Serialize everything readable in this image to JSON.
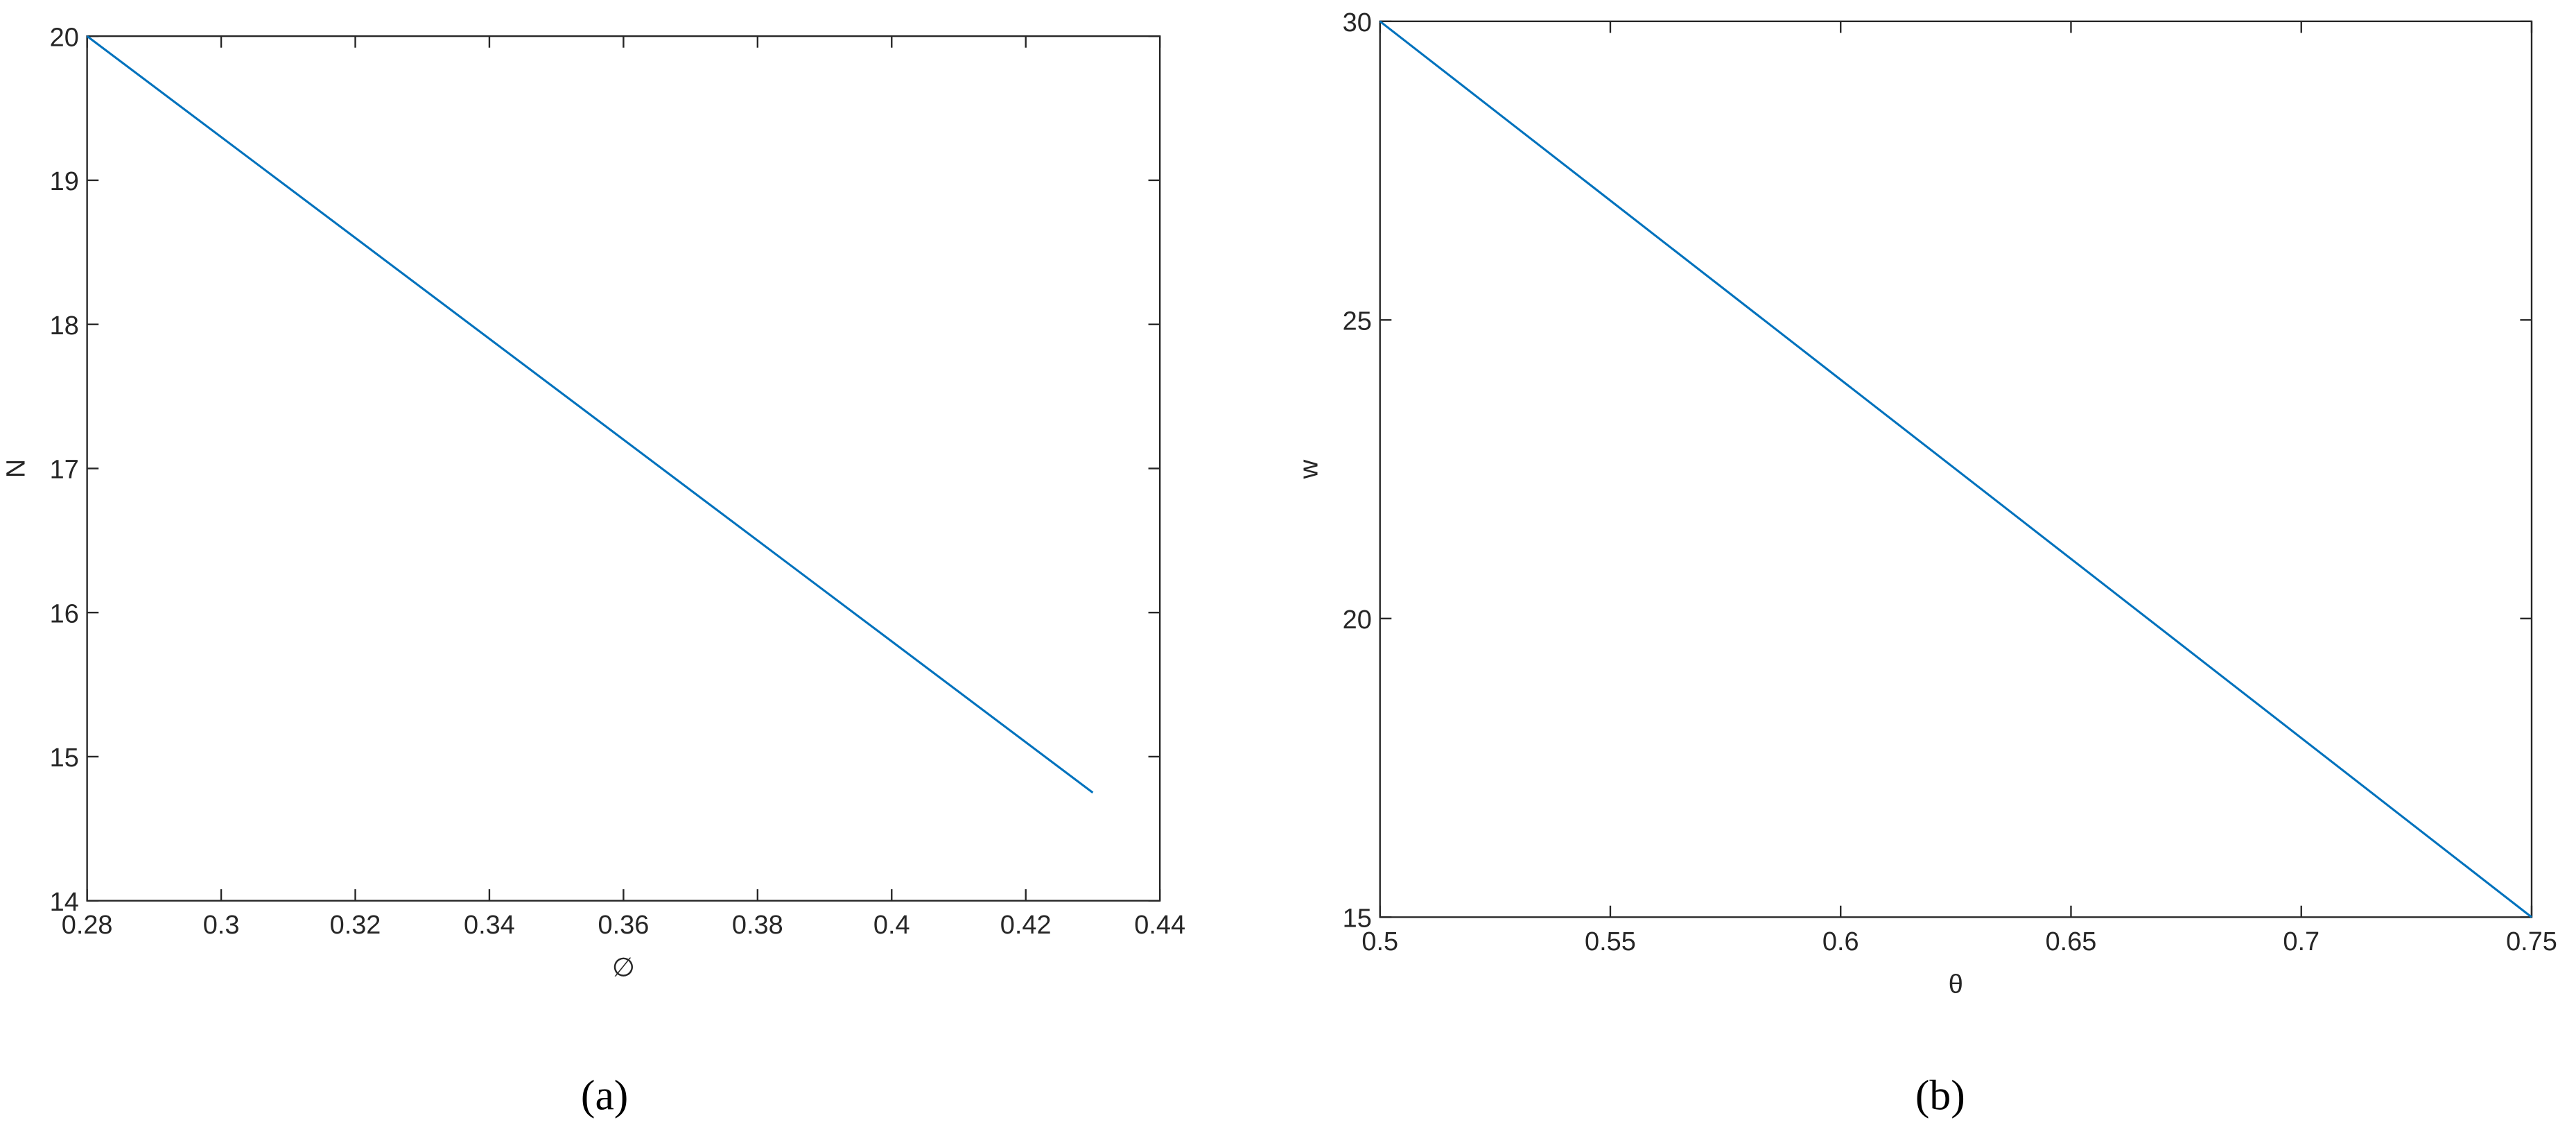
{
  "chart_data": [
    {
      "type": "line",
      "caption": "(a)",
      "xlabel": "∅",
      "ylabel": "N",
      "x": [
        0.28,
        0.43
      ],
      "series": [
        {
          "color": "#0072bd",
          "values": [
            20,
            14.75
          ]
        }
      ],
      "xlim": [
        0.28,
        0.44
      ],
      "ylim": [
        14,
        20
      ],
      "xticks": [
        0.28,
        0.3,
        0.32,
        0.34,
        0.36,
        0.38,
        0.4,
        0.42,
        0.44
      ],
      "yticks": [
        14,
        15,
        16,
        17,
        18,
        19,
        20
      ],
      "grid": false
    },
    {
      "type": "line",
      "caption": "(b)",
      "xlabel": "θ",
      "ylabel": "w",
      "x": [
        0.5,
        0.75
      ],
      "series": [
        {
          "color": "#0072bd",
          "values": [
            30,
            15
          ]
        }
      ],
      "xlim": [
        0.5,
        0.75
      ],
      "ylim": [
        15,
        30
      ],
      "xticks": [
        0.5,
        0.55,
        0.6,
        0.65,
        0.7,
        0.75
      ],
      "yticks": [
        15,
        20,
        25,
        30
      ],
      "grid": false
    }
  ]
}
